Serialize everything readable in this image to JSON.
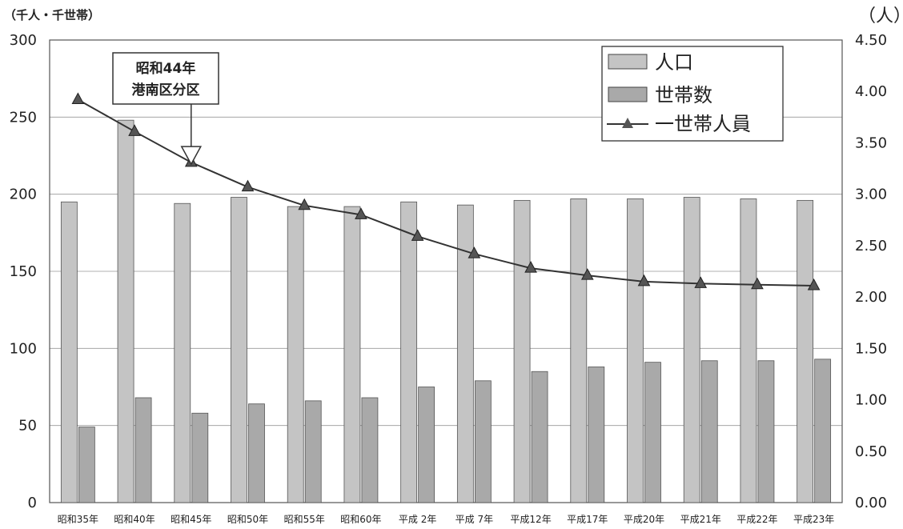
{
  "chart_data": {
    "type": "bar",
    "categories": [
      "昭和35年",
      "昭和40年",
      "昭和45年",
      "昭和50年",
      "昭和55年",
      "昭和60年",
      "平成 2年",
      "平成 7年",
      "平成12年",
      "平成17年",
      "平成20年",
      "平成21年",
      "平成22年",
      "平成23年"
    ],
    "series": [
      {
        "name": "人口",
        "axis": "left",
        "kind": "bar",
        "values": [
          195,
          248,
          194,
          198,
          192,
          192,
          195,
          193,
          196,
          197,
          197,
          198,
          197,
          196
        ]
      },
      {
        "name": "世帯数",
        "axis": "left",
        "kind": "bar",
        "values": [
          49,
          68,
          58,
          64,
          66,
          68,
          75,
          79,
          85,
          88,
          91,
          92,
          92,
          93
        ]
      },
      {
        "name": "一世帯人員",
        "axis": "right",
        "kind": "line",
        "values": [
          3.92,
          3.61,
          3.31,
          3.07,
          2.89,
          2.8,
          2.59,
          2.42,
          2.28,
          2.21,
          2.15,
          2.13,
          2.12,
          2.11
        ]
      }
    ],
    "y_left": {
      "unit_label": "（千人・千世帯）",
      "min": 0,
      "max": 300,
      "ticks": [
        "0",
        "50",
        "100",
        "150",
        "200",
        "250",
        "300"
      ]
    },
    "y_right": {
      "unit_label": "（人）",
      "min": 0,
      "max": 4.5,
      "ticks": [
        "0.00",
        "0.50",
        "1.00",
        "1.50",
        "2.00",
        "2.50",
        "3.00",
        "3.50",
        "4.00",
        "4.50"
      ]
    },
    "annotation": {
      "lines": [
        "昭和44年",
        "港南区分区"
      ],
      "at_index": 2.0,
      "value_right": 3.37
    },
    "legend_position": "top-right",
    "grid": true,
    "colors": {
      "bar1": "#c4c4c4",
      "bar2": "#a9a9a9",
      "line": "#333333"
    }
  }
}
